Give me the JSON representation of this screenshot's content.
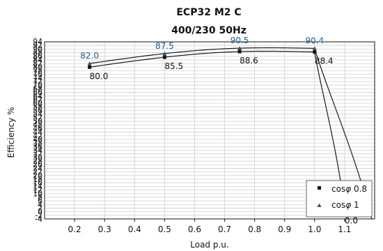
{
  "chart_data": {
    "type": "line",
    "title": "ECP32 M2 C",
    "subtitle": "400/230 50Hz",
    "xlabel": "Load p.u.",
    "ylabel": "Efficiency %",
    "xlim": [
      0.1,
      1.2
    ],
    "ylim": [
      -4,
      94
    ],
    "x_ticks": [
      "0.2",
      "0.3",
      "0.4",
      "0.5",
      "0.6",
      "0.7",
      "0.8",
      "0.9",
      "1.0",
      "1.1"
    ],
    "x_tick_values": [
      0.2,
      0.3,
      0.4,
      0.5,
      0.6,
      0.7,
      0.8,
      0.9,
      1.0,
      1.1
    ],
    "y_ticks": [
      "94",
      "92",
      "90",
      "88",
      "86",
      "84",
      "82",
      "80",
      "78",
      "76",
      "74",
      "72",
      "70",
      "68",
      "66",
      "64",
      "62",
      "60",
      "58",
      "56",
      "54",
      "52",
      "50",
      "48",
      "46",
      "44",
      "42",
      "40",
      "38",
      "36",
      "34",
      "32",
      "30",
      "28",
      "26",
      "24",
      "22",
      "20",
      "18",
      "16",
      "14",
      "12",
      "10",
      "8",
      "6",
      "4",
      "2",
      "0",
      "-2",
      "-4"
    ],
    "grid": true,
    "legend_position": "bottom-right",
    "series": [
      {
        "name": "cosφ 0.8",
        "marker": "square",
        "color": "#111111",
        "x": [
          0.25,
          0.5,
          0.75,
          1.0,
          1.1
        ],
        "y": [
          80.0,
          85.5,
          88.6,
          88.4,
          0.0
        ],
        "labels": [
          "80.0",
          "85.5",
          "88.6",
          "88.4",
          "0.0"
        ]
      },
      {
        "name": "cosφ 1",
        "marker": "triangle",
        "color": "#1f5a8a",
        "x": [
          0.25,
          0.5,
          0.75,
          1.0
        ],
        "y": [
          82.0,
          87.5,
          90.5,
          90.4
        ],
        "labels": [
          "82.0",
          "87.5",
          "90.5",
          "90.4"
        ]
      }
    ]
  },
  "legend": {
    "items": [
      {
        "prefix": "cos",
        "symbol": "φ",
        "suffix": " 0.8"
      },
      {
        "prefix": "cos",
        "symbol": "φ",
        "suffix": " 1"
      }
    ]
  }
}
